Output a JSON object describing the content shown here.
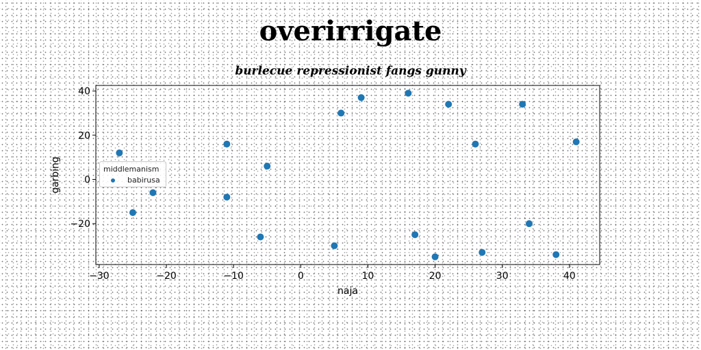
{
  "title": "overirrigate",
  "subtitle": "burlecue repressionist fangs gunny",
  "chart_data": {
    "type": "scatter",
    "xlabel": "naja",
    "ylabel": "garbing",
    "xlim": [
      -30.5,
      44.5
    ],
    "ylim": [
      -38.5,
      42.5
    ],
    "xticks": [
      -30,
      -20,
      -10,
      0,
      10,
      20,
      30,
      40
    ],
    "yticks": [
      -20,
      0,
      20,
      40
    ],
    "grid": false,
    "legend": {
      "title": "middlemanism",
      "placement": "center-left"
    },
    "series": [
      {
        "name": "babirusa",
        "color": "#1f77b4",
        "points": [
          [
            -27,
            12
          ],
          [
            -25,
            -15
          ],
          [
            -22,
            -6
          ],
          [
            -11,
            16
          ],
          [
            -11,
            -8
          ],
          [
            -6,
            -26
          ],
          [
            -5,
            6
          ],
          [
            5,
            -30
          ],
          [
            6,
            30
          ],
          [
            9,
            37
          ],
          [
            16,
            39
          ],
          [
            17,
            -25
          ],
          [
            20,
            -35
          ],
          [
            22,
            34
          ],
          [
            26,
            16
          ],
          [
            27,
            -33
          ],
          [
            33,
            34
          ],
          [
            34,
            -20
          ],
          [
            38,
            -34
          ],
          [
            41,
            17
          ]
        ]
      }
    ]
  }
}
